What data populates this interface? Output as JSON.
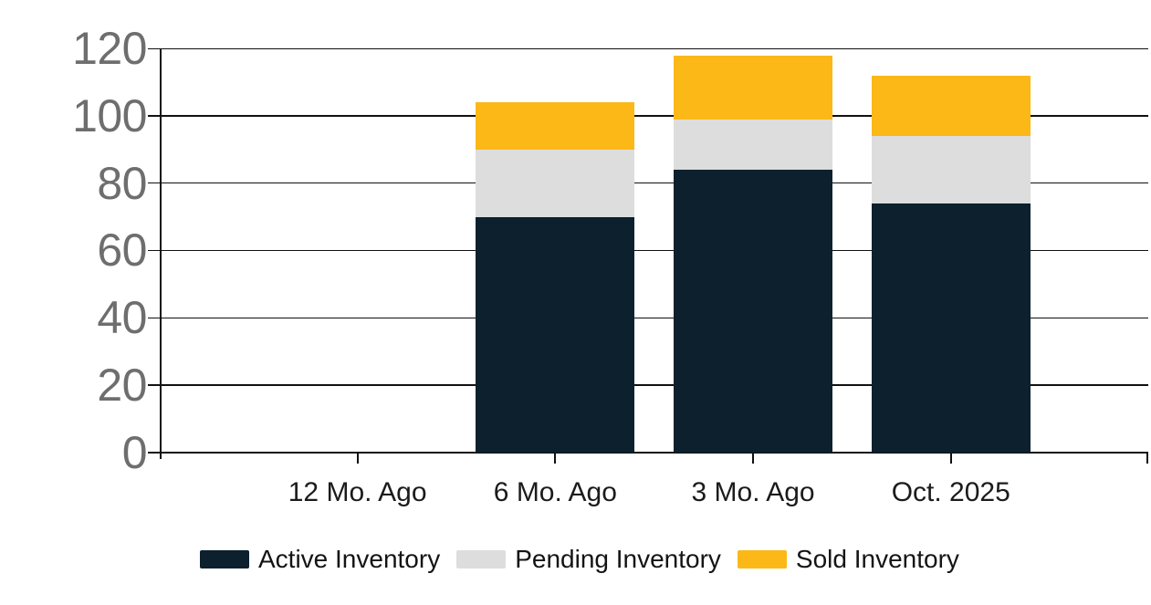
{
  "chart_data": {
    "type": "bar",
    "stacked": true,
    "title": "",
    "categories": [
      "12 Mo. Ago",
      "6 Mo. Ago",
      "3 Mo. Ago",
      "Oct. 2025"
    ],
    "series": [
      {
        "name": "Active Inventory",
        "color": "#0C202D",
        "values": [
          0,
          70,
          84,
          74
        ]
      },
      {
        "name": "Pending Inventory",
        "color": "#DCDDDC",
        "values": [
          0,
          20,
          15,
          20
        ]
      },
      {
        "name": "Sold Inventory",
        "color": "#FBB817",
        "values": [
          0,
          14,
          19,
          18
        ]
      }
    ],
    "stack_totals": [
      0,
      104,
      118,
      112
    ],
    "ylim": [
      0,
      120
    ],
    "ytick_interval": 20,
    "yticks": [
      "0",
      "20",
      "40",
      "60",
      "80",
      "100",
      "120"
    ],
    "xlabel": "",
    "ylabel": "",
    "grid": true,
    "legend_position": "bottom"
  },
  "colors": {
    "background": "#FFFFFF",
    "grid_line": "#111111",
    "axis_line": "#111111",
    "y_tick_label": "#6E6E6E",
    "x_tick_label": "#1B1B1B",
    "legend_label": "#141414"
  }
}
